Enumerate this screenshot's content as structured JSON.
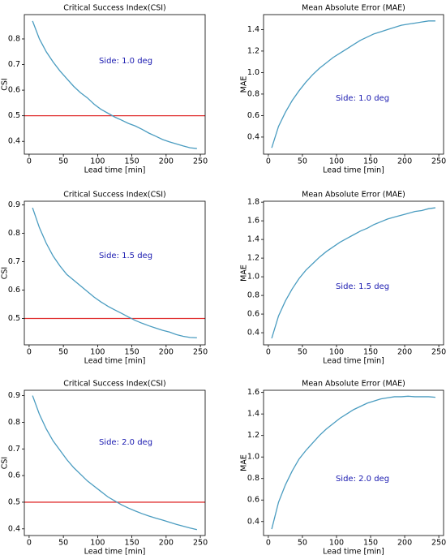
{
  "chart_data": [
    {
      "type": "line",
      "title": "Critical Success Index(CSI)",
      "xlabel": "Lead time [min]",
      "ylabel": "CSI",
      "annotation": "Side: 1.0 deg",
      "annotation_color": "#1a1ab0",
      "x": [
        5,
        15,
        25,
        35,
        45,
        55,
        65,
        75,
        85,
        95,
        105,
        115,
        125,
        135,
        145,
        155,
        165,
        175,
        185,
        195,
        205,
        215,
        225,
        235,
        245
      ],
      "values": [
        0.87,
        0.8,
        0.75,
        0.71,
        0.675,
        0.645,
        0.615,
        0.59,
        0.57,
        0.545,
        0.525,
        0.51,
        0.495,
        0.483,
        0.47,
        0.46,
        0.447,
        0.432,
        0.42,
        0.407,
        0.398,
        0.39,
        0.382,
        0.375,
        0.372
      ],
      "color": "#4a9cc0",
      "hline": 0.5,
      "hline_color": "#e03030",
      "xlim": [
        -7,
        257
      ],
      "xticks": [
        0,
        50,
        100,
        150,
        200,
        250
      ],
      "ylim": [
        0.35,
        0.895
      ],
      "yticks": [
        0.4,
        0.5,
        0.6,
        0.7,
        0.8
      ]
    },
    {
      "type": "line",
      "title": "Mean Absolute Error (MAE)",
      "xlabel": "Lead time [min]",
      "ylabel": "MAE",
      "annotation": "Side: 1.0 deg",
      "annotation_color": "#1a1ab0",
      "x": [
        5,
        15,
        25,
        35,
        45,
        55,
        65,
        75,
        85,
        95,
        105,
        115,
        125,
        135,
        145,
        155,
        165,
        175,
        185,
        195,
        205,
        215,
        225,
        235,
        245
      ],
      "values": [
        0.3,
        0.5,
        0.63,
        0.74,
        0.83,
        0.91,
        0.98,
        1.04,
        1.09,
        1.14,
        1.18,
        1.22,
        1.26,
        1.3,
        1.33,
        1.36,
        1.38,
        1.4,
        1.42,
        1.44,
        1.45,
        1.46,
        1.47,
        1.48,
        1.48
      ],
      "color": "#4a9cc0",
      "xlim": [
        -7,
        257
      ],
      "xticks": [
        0,
        50,
        100,
        150,
        200,
        250
      ],
      "ylim": [
        0.241,
        1.539
      ],
      "yticks": [
        0.4,
        0.6,
        0.8,
        {
          "value": 1,
          "label": "1.0"
        },
        1.2,
        1.4
      ]
    },
    {
      "type": "line",
      "title": "Critical Success Index(CSI)",
      "xlabel": "Lead time [min]",
      "ylabel": "CSI",
      "annotation": "Side: 1.5 deg",
      "annotation_color": "#1a1ab0",
      "x": [
        5,
        15,
        25,
        35,
        45,
        55,
        65,
        75,
        85,
        95,
        105,
        115,
        125,
        135,
        145,
        155,
        165,
        175,
        185,
        195,
        205,
        215,
        225,
        235,
        245
      ],
      "values": [
        0.89,
        0.82,
        0.765,
        0.72,
        0.685,
        0.655,
        0.635,
        0.615,
        0.595,
        0.575,
        0.558,
        0.543,
        0.53,
        0.518,
        0.505,
        0.493,
        0.483,
        0.474,
        0.466,
        0.458,
        0.452,
        0.443,
        0.437,
        0.433,
        0.432
      ],
      "color": "#4a9cc0",
      "hline": 0.5,
      "hline_color": "#e03030",
      "xlim": [
        -7,
        257
      ],
      "xticks": [
        0,
        50,
        100,
        150,
        200,
        250
      ],
      "ylim": [
        0.407,
        0.913
      ],
      "yticks": [
        0.5,
        0.6,
        0.7,
        0.8,
        0.9
      ]
    },
    {
      "type": "line",
      "title": "Mean Absolute Error (MAE)",
      "xlabel": "Lead time [min]",
      "ylabel": "MAE",
      "annotation": "Side: 1.5 deg",
      "annotation_color": "#1a1ab0",
      "x": [
        5,
        15,
        25,
        35,
        45,
        55,
        65,
        75,
        85,
        95,
        105,
        115,
        125,
        135,
        145,
        155,
        165,
        175,
        185,
        195,
        205,
        215,
        225,
        235,
        245
      ],
      "values": [
        0.34,
        0.58,
        0.74,
        0.87,
        0.98,
        1.07,
        1.14,
        1.21,
        1.27,
        1.32,
        1.37,
        1.41,
        1.45,
        1.49,
        1.52,
        1.56,
        1.59,
        1.62,
        1.64,
        1.66,
        1.68,
        1.7,
        1.71,
        1.73,
        1.74
      ],
      "color": "#4a9cc0",
      "xlim": [
        -7,
        257
      ],
      "xticks": [
        0,
        50,
        100,
        150,
        200,
        250
      ],
      "ylim": [
        0.27,
        1.81
      ],
      "yticks": [
        0.4,
        0.6,
        0.8,
        {
          "value": 1,
          "label": "1.0"
        },
        1.2,
        1.4,
        1.6,
        1.8
      ]
    },
    {
      "type": "line",
      "title": "Critical Success Index(CSI)",
      "xlabel": "Lead time [min]",
      "ylabel": "CSI",
      "annotation": "Side: 2.0 deg",
      "annotation_color": "#1a1ab0",
      "x": [
        5,
        15,
        25,
        35,
        45,
        55,
        65,
        75,
        85,
        95,
        105,
        115,
        125,
        135,
        145,
        155,
        165,
        175,
        185,
        195,
        205,
        215,
        225,
        235,
        245
      ],
      "values": [
        0.9,
        0.83,
        0.775,
        0.73,
        0.695,
        0.66,
        0.63,
        0.605,
        0.58,
        0.56,
        0.54,
        0.52,
        0.505,
        0.49,
        0.478,
        0.467,
        0.457,
        0.448,
        0.44,
        0.433,
        0.425,
        0.417,
        0.41,
        0.403,
        0.397
      ],
      "color": "#4a9cc0",
      "hline": 0.5,
      "hline_color": "#e03030",
      "xlim": [
        -7,
        257
      ],
      "xticks": [
        0,
        50,
        100,
        150,
        200,
        250
      ],
      "ylim": [
        0.375,
        0.92
      ],
      "yticks": [
        0.4,
        0.5,
        0.6,
        0.7,
        0.8,
        0.9
      ]
    },
    {
      "type": "line",
      "title": "Mean Absolute Error (MAE)",
      "xlabel": "Lead time [min]",
      "ylabel": "MAE",
      "annotation": "Side: 2.0 deg",
      "annotation_color": "#1a1ab0",
      "x": [
        5,
        15,
        25,
        35,
        45,
        55,
        65,
        75,
        85,
        95,
        105,
        115,
        125,
        135,
        145,
        155,
        165,
        175,
        185,
        195,
        205,
        215,
        225,
        235,
        245
      ],
      "values": [
        0.33,
        0.58,
        0.74,
        0.87,
        0.98,
        1.06,
        1.13,
        1.2,
        1.26,
        1.31,
        1.36,
        1.4,
        1.44,
        1.47,
        1.5,
        1.52,
        1.54,
        1.55,
        1.56,
        1.56,
        1.565,
        1.56,
        1.56,
        1.56,
        1.555
      ],
      "color": "#4a9cc0",
      "xlim": [
        -7,
        257
      ],
      "xticks": [
        0,
        50,
        100,
        150,
        200,
        250
      ],
      "ylim": [
        0.27,
        1.62
      ],
      "yticks": [
        0.4,
        0.6,
        0.8,
        {
          "value": 1,
          "label": "1.0"
        },
        1.2,
        1.4,
        1.6
      ]
    }
  ]
}
